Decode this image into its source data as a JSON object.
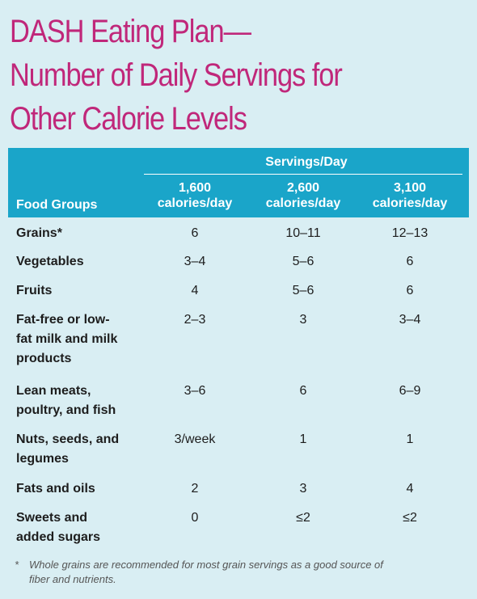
{
  "title": {
    "line1": "DASH Eating Plan—",
    "line2": "Number of Daily Servings for",
    "line3": "Other Calorie Levels"
  },
  "table": {
    "servings_header": "Servings/Day",
    "food_groups_header": "Food Groups",
    "columns": [
      {
        "value": "1,600",
        "unit": "calories/day"
      },
      {
        "value": "2,600",
        "unit": "calories/day"
      },
      {
        "value": "3,100",
        "unit": "calories/day"
      }
    ],
    "rows": [
      {
        "food": [
          "Grains*"
        ],
        "values": [
          "6",
          "10–11",
          "12–13"
        ]
      },
      {
        "food": [
          "Vegetables"
        ],
        "values": [
          "3–4",
          "5–6",
          "6"
        ]
      },
      {
        "food": [
          "Fruits"
        ],
        "values": [
          "4",
          "5–6",
          "6"
        ]
      },
      {
        "food": [
          "Fat-free or low-",
          "fat milk and milk",
          "products"
        ],
        "values": [
          "2–3",
          "3",
          "3–4"
        ]
      },
      {
        "food": [
          "Lean meats,",
          "poultry, and fish"
        ],
        "values": [
          "3–6",
          "6",
          "6–9"
        ]
      },
      {
        "food": [
          "Nuts, seeds, and",
          "legumes"
        ],
        "values": [
          "3/week",
          "1",
          "1"
        ]
      },
      {
        "food": [
          "Fats and oils"
        ],
        "values": [
          "2",
          "3",
          "4"
        ]
      },
      {
        "food": [
          "Sweets and",
          "added sugars"
        ],
        "values": [
          "0",
          "≤2",
          "≤2"
        ]
      }
    ]
  },
  "footnote": {
    "star": "*",
    "line1": "Whole grains are recommended for most grain servings as a good source of",
    "line2": "fiber and nutrients."
  },
  "colors": {
    "title": "#c0277a",
    "header_bg": "#1aa5c9",
    "page_bg": "#d9eef3"
  }
}
